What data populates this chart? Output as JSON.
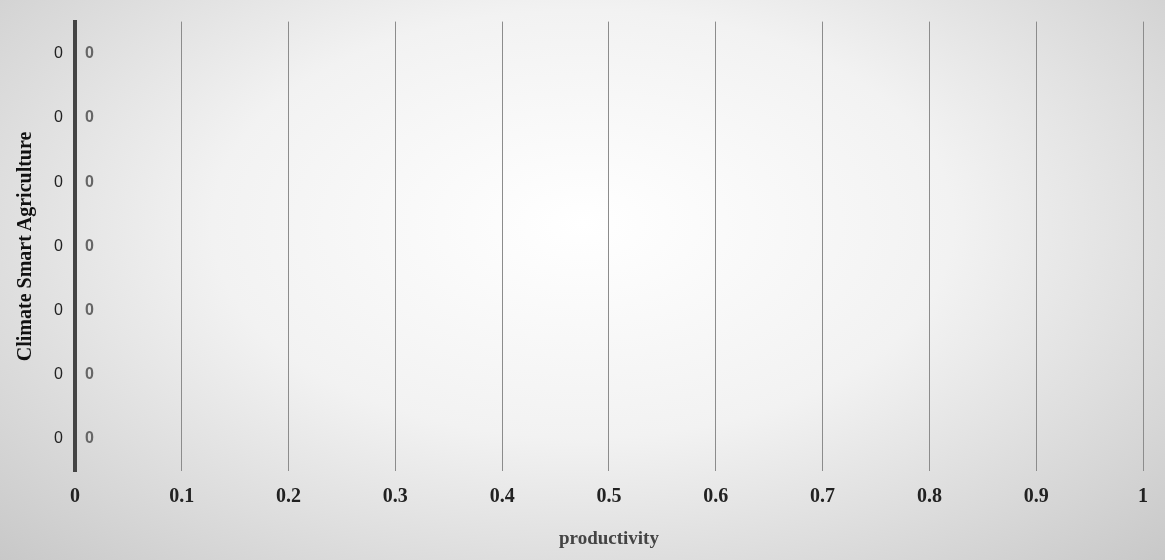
{
  "chart_data": {
    "type": "bar",
    "orientation": "horizontal",
    "xlabel": "productivity",
    "ylabel": "Climate Smart Agriculture",
    "categories": [
      "0",
      "0",
      "0",
      "0",
      "0",
      "0",
      "0"
    ],
    "values": [
      0,
      0,
      0,
      0,
      0,
      0,
      0
    ],
    "xlim": [
      0,
      1
    ],
    "xticks": [
      0,
      0.1,
      0.2,
      0.3,
      0.4,
      0.5,
      0.6,
      0.7,
      0.8,
      0.9,
      1
    ],
    "grid": "x",
    "data_labels": true,
    "legend": false
  }
}
